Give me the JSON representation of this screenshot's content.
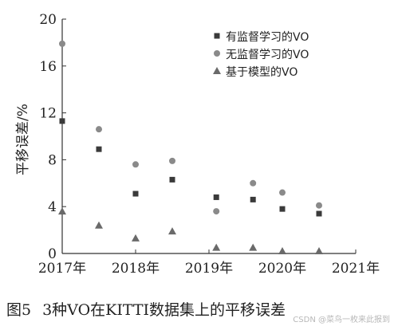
{
  "chart_data": {
    "type": "scatter",
    "title": "",
    "ylabel": "平移误差/%",
    "xlabel": "",
    "xlim": [
      2017,
      2021
    ],
    "ylim": [
      0,
      20
    ],
    "yticks": [
      0,
      4,
      8,
      12,
      16,
      20
    ],
    "xtick_labels": [
      "2017年",
      "2018年",
      "2019年",
      "2020年",
      "2021年"
    ],
    "legend_position": "top-right",
    "grid": false,
    "series": [
      {
        "name": "有监督学习的VO",
        "marker": "square",
        "color": "#3a3a3a",
        "x": [
          2017.0,
          2017.5,
          2018.0,
          2018.5,
          2019.1,
          2019.6,
          2020.0,
          2020.5
        ],
        "y": [
          11.3,
          8.9,
          5.1,
          6.3,
          4.8,
          4.6,
          3.8,
          3.4
        ]
      },
      {
        "name": "无监督学习的VO",
        "marker": "circle",
        "color": "#8a8a8a",
        "x": [
          2017.0,
          2017.5,
          2018.0,
          2018.5,
          2019.1,
          2019.6,
          2020.0,
          2020.5
        ],
        "y": [
          17.9,
          10.6,
          7.6,
          7.9,
          3.6,
          6.0,
          5.2,
          4.1
        ]
      },
      {
        "name": "基于模型的VO",
        "marker": "triangle",
        "color": "#6a6a6a",
        "x": [
          2017.0,
          2017.5,
          2018.0,
          2018.5,
          2019.1,
          2019.6,
          2020.0,
          2020.5
        ],
        "y": [
          3.6,
          2.4,
          1.3,
          1.9,
          0.5,
          0.5,
          0.2,
          0.2
        ]
      }
    ]
  },
  "caption": {
    "figure_number": "图5",
    "text": "3种VO在KITTI数据集上的平移误差"
  },
  "watermark": "CSDN @菜鸟一枚来此报到"
}
